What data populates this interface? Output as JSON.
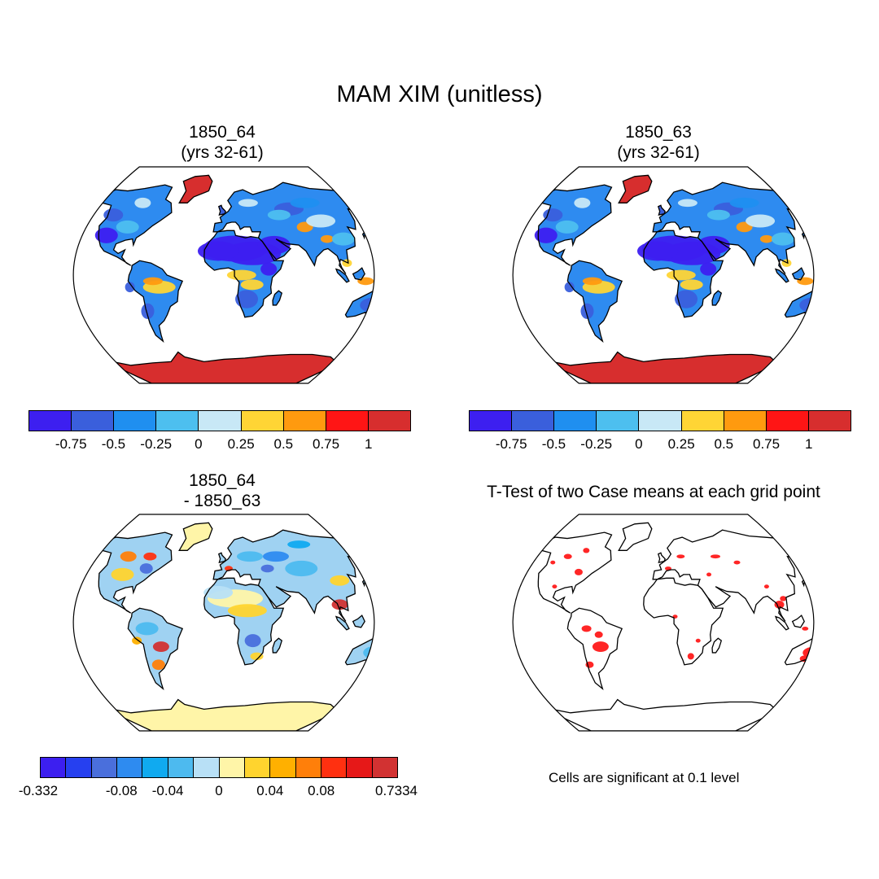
{
  "title": "MAM XIM (unitless)",
  "panels": [
    {
      "title_line1": "1850_64",
      "title_line2": "(yrs 32-61)"
    },
    {
      "title_line1": "1850_63",
      "title_line2": "(yrs 32-61)"
    },
    {
      "title_line1": "1850_64",
      "title_line2": "- 1850_63"
    },
    {
      "title_line1": "T-Test of two Case means at each grid point",
      "title_line2": ""
    }
  ],
  "colorbar_main": {
    "colors": [
      "#3d1ff0",
      "#3a5fdc",
      "#1f8ff0",
      "#4dbfef",
      "#c8e8f6",
      "#ffd535",
      "#ff9a0f",
      "#ff1515",
      "#d72e2e"
    ],
    "ticks": [
      "-0.75",
      "-0.5",
      "-0.25",
      "0",
      "0.25",
      "0.5",
      "0.75",
      "1"
    ]
  },
  "colorbar_diff": {
    "colors": [
      "#3c1ff0",
      "#2640f0",
      "#4a6fdc",
      "#2e8bf0",
      "#10aaf0",
      "#4dbaef",
      "#b8e0f6",
      "#fff5a8",
      "#ffd42e",
      "#ffb000",
      "#ff7f0a",
      "#ff3010",
      "#e61818",
      "#d23232"
    ],
    "ticks": [
      "-0.332",
      "-0.08",
      "-0.04",
      "0",
      "0.04",
      "0.08",
      "0.7334"
    ]
  },
  "significance_note": "Cells are significant at 0.1 level",
  "colors": {
    "significant": "#ff1a1a",
    "antarctica_diff": "#fff5a8"
  }
}
